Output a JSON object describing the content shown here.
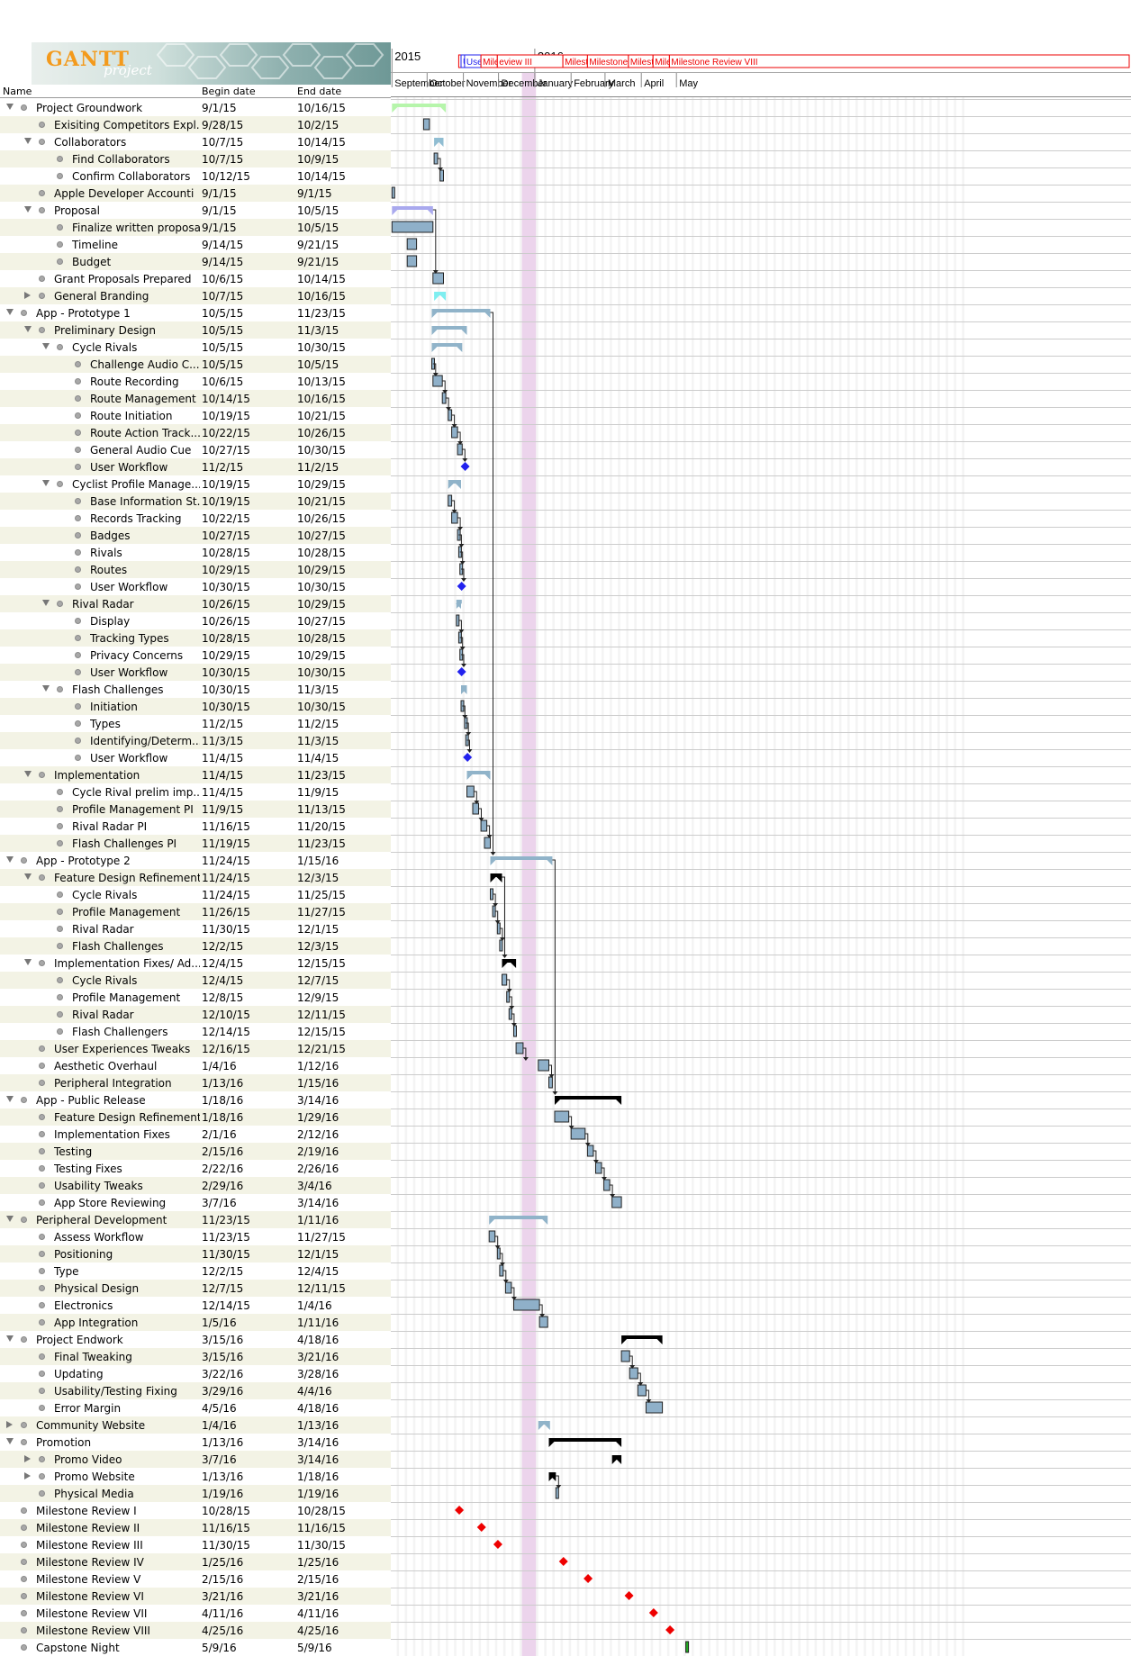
{
  "app": {
    "logo_text": "GANTT",
    "logo_subtext": "project"
  },
  "table": {
    "headers": {
      "name": "Name",
      "begin": "Begin date",
      "end": "End date"
    }
  },
  "timeline": {
    "years": [
      "2015",
      "2016"
    ],
    "months": [
      "September",
      "October",
      "November",
      "December",
      "January",
      "February",
      "March",
      "April",
      "May"
    ],
    "milestone_header_labels": [
      "H",
      "U",
      "User Wo",
      "Milestone Review II",
      "eview III",
      "Milestone Re",
      "Milestone Review V",
      "Milestone Re",
      "Milestor",
      "Milestone Review VIII"
    ]
  },
  "colors": {
    "task_bar": "#8fb0c9",
    "milestone_red": "#ee0000",
    "milestone_blue": "#2222ee",
    "holiday_band": "#ecd4ec",
    "weekend": "#f4f4f4"
  },
  "tasks": [
    {
      "name": "Project Groundwork",
      "begin": "9/1/15",
      "end": "10/16/15",
      "level": 0,
      "expand": "open",
      "kind": "summary",
      "color": "#b6f5ab"
    },
    {
      "name": "Exisiting Competitors Expl...",
      "begin": "9/28/15",
      "end": "10/2/15",
      "level": 1,
      "expand": "",
      "kind": "task"
    },
    {
      "name": "Collaborators",
      "begin": "10/7/15",
      "end": "10/14/15",
      "level": 1,
      "expand": "open",
      "kind": "summary",
      "color": "#90bdd2"
    },
    {
      "name": "Find Collaborators",
      "begin": "10/7/15",
      "end": "10/9/15",
      "level": 2,
      "expand": "",
      "kind": "task"
    },
    {
      "name": "Confirm Collaborators",
      "begin": "10/12/15",
      "end": "10/14/15",
      "level": 2,
      "expand": "",
      "kind": "task"
    },
    {
      "name": "Apple Developer Accounti",
      "begin": "9/1/15",
      "end": "9/1/15",
      "level": 1,
      "expand": "",
      "kind": "task"
    },
    {
      "name": "Proposal",
      "begin": "9/1/15",
      "end": "10/5/15",
      "level": 1,
      "expand": "open",
      "kind": "summary",
      "color": "#a9a9ee"
    },
    {
      "name": "Finalize written proposal",
      "begin": "9/1/15",
      "end": "10/5/15",
      "level": 2,
      "expand": "",
      "kind": "task"
    },
    {
      "name": "Timeline",
      "begin": "9/14/15",
      "end": "9/21/15",
      "level": 2,
      "expand": "",
      "kind": "task"
    },
    {
      "name": "Budget",
      "begin": "9/14/15",
      "end": "9/21/15",
      "level": 2,
      "expand": "",
      "kind": "task"
    },
    {
      "name": "Grant Proposals Prepared",
      "begin": "10/6/15",
      "end": "10/14/15",
      "level": 1,
      "expand": "",
      "kind": "task"
    },
    {
      "name": "General Branding",
      "begin": "10/7/15",
      "end": "10/16/15",
      "level": 1,
      "expand": "closed",
      "kind": "summary",
      "color": "#7eeef0"
    },
    {
      "name": "App - Prototype 1",
      "begin": "10/5/15",
      "end": "11/23/15",
      "level": 0,
      "expand": "open",
      "kind": "summary",
      "color": "#90b3c9"
    },
    {
      "name": "Preliminary Design",
      "begin": "10/5/15",
      "end": "11/3/15",
      "level": 1,
      "expand": "open",
      "kind": "summary",
      "color": "#90b3c9"
    },
    {
      "name": "Cycle Rivals",
      "begin": "10/5/15",
      "end": "10/30/15",
      "level": 2,
      "expand": "open",
      "kind": "summary",
      "color": "#90b3c9"
    },
    {
      "name": "Challenge Audio C...",
      "begin": "10/5/15",
      "end": "10/5/15",
      "level": 3,
      "expand": "",
      "kind": "task"
    },
    {
      "name": "Route Recording",
      "begin": "10/6/15",
      "end": "10/13/15",
      "level": 3,
      "expand": "",
      "kind": "task"
    },
    {
      "name": "Route Management",
      "begin": "10/14/15",
      "end": "10/16/15",
      "level": 3,
      "expand": "",
      "kind": "task"
    },
    {
      "name": "Route Initiation",
      "begin": "10/19/15",
      "end": "10/21/15",
      "level": 3,
      "expand": "",
      "kind": "task"
    },
    {
      "name": "Route Action Track...",
      "begin": "10/22/15",
      "end": "10/26/15",
      "level": 3,
      "expand": "",
      "kind": "task"
    },
    {
      "name": "General Audio Cue",
      "begin": "10/27/15",
      "end": "10/30/15",
      "level": 3,
      "expand": "",
      "kind": "task"
    },
    {
      "name": "User Workflow",
      "begin": "11/2/15",
      "end": "11/2/15",
      "level": 3,
      "expand": "",
      "kind": "milestone",
      "color": "#2222ee"
    },
    {
      "name": "Cyclist Profile Manage...",
      "begin": "10/19/15",
      "end": "10/29/15",
      "level": 2,
      "expand": "open",
      "kind": "summary",
      "color": "#90b3c9"
    },
    {
      "name": "Base Information St...",
      "begin": "10/19/15",
      "end": "10/21/15",
      "level": 3,
      "expand": "",
      "kind": "task"
    },
    {
      "name": "Records Tracking",
      "begin": "10/22/15",
      "end": "10/26/15",
      "level": 3,
      "expand": "",
      "kind": "task"
    },
    {
      "name": "Badges",
      "begin": "10/27/15",
      "end": "10/27/15",
      "level": 3,
      "expand": "",
      "kind": "task"
    },
    {
      "name": "Rivals",
      "begin": "10/28/15",
      "end": "10/28/15",
      "level": 3,
      "expand": "",
      "kind": "task"
    },
    {
      "name": "Routes",
      "begin": "10/29/15",
      "end": "10/29/15",
      "level": 3,
      "expand": "",
      "kind": "task"
    },
    {
      "name": "User Workflow",
      "begin": "10/30/15",
      "end": "10/30/15",
      "level": 3,
      "expand": "",
      "kind": "milestone",
      "color": "#2222ee"
    },
    {
      "name": "Rival Radar",
      "begin": "10/26/15",
      "end": "10/29/15",
      "level": 2,
      "expand": "open",
      "kind": "summary",
      "color": "#90b3c9"
    },
    {
      "name": "Display",
      "begin": "10/26/15",
      "end": "10/27/15",
      "level": 3,
      "expand": "",
      "kind": "task"
    },
    {
      "name": "Tracking Types",
      "begin": "10/28/15",
      "end": "10/28/15",
      "level": 3,
      "expand": "",
      "kind": "task"
    },
    {
      "name": "Privacy Concerns",
      "begin": "10/29/15",
      "end": "10/29/15",
      "level": 3,
      "expand": "",
      "kind": "task"
    },
    {
      "name": "User Workflow",
      "begin": "10/30/15",
      "end": "10/30/15",
      "level": 3,
      "expand": "",
      "kind": "milestone",
      "color": "#2222ee"
    },
    {
      "name": "Flash Challenges",
      "begin": "10/30/15",
      "end": "11/3/15",
      "level": 2,
      "expand": "open",
      "kind": "summary",
      "color": "#90b3c9"
    },
    {
      "name": "Initiation",
      "begin": "10/30/15",
      "end": "10/30/15",
      "level": 3,
      "expand": "",
      "kind": "task"
    },
    {
      "name": "Types",
      "begin": "11/2/15",
      "end": "11/2/15",
      "level": 3,
      "expand": "",
      "kind": "task"
    },
    {
      "name": "Identifying/Determ...",
      "begin": "11/3/15",
      "end": "11/3/15",
      "level": 3,
      "expand": "",
      "kind": "task"
    },
    {
      "name": "User Workflow",
      "begin": "11/4/15",
      "end": "11/4/15",
      "level": 3,
      "expand": "",
      "kind": "milestone",
      "color": "#2222ee"
    },
    {
      "name": "Implementation",
      "begin": "11/4/15",
      "end": "11/23/15",
      "level": 1,
      "expand": "open",
      "kind": "summary",
      "color": "#90b3c9"
    },
    {
      "name": "Cycle Rival prelim imp...",
      "begin": "11/4/15",
      "end": "11/9/15",
      "level": 2,
      "expand": "",
      "kind": "task"
    },
    {
      "name": "Profile Management PI",
      "begin": "11/9/15",
      "end": "11/13/15",
      "level": 2,
      "expand": "",
      "kind": "task"
    },
    {
      "name": "Rival Radar PI",
      "begin": "11/16/15",
      "end": "11/20/15",
      "level": 2,
      "expand": "",
      "kind": "task"
    },
    {
      "name": "Flash Challenges PI",
      "begin": "11/19/15",
      "end": "11/23/15",
      "level": 2,
      "expand": "",
      "kind": "task"
    },
    {
      "name": "App - Prototype 2",
      "begin": "11/24/15",
      "end": "1/15/16",
      "level": 0,
      "expand": "open",
      "kind": "summary",
      "color": "#90b3c9"
    },
    {
      "name": "Feature Design Refinements",
      "begin": "11/24/15",
      "end": "12/3/15",
      "level": 1,
      "expand": "open",
      "kind": "summary",
      "color": "#000000"
    },
    {
      "name": "Cycle Rivals",
      "begin": "11/24/15",
      "end": "11/25/15",
      "level": 2,
      "expand": "",
      "kind": "task"
    },
    {
      "name": "Profile Management",
      "begin": "11/26/15",
      "end": "11/27/15",
      "level": 2,
      "expand": "",
      "kind": "task"
    },
    {
      "name": "Rival Radar",
      "begin": "11/30/15",
      "end": "12/1/15",
      "level": 2,
      "expand": "",
      "kind": "task"
    },
    {
      "name": "Flash Challenges",
      "begin": "12/2/15",
      "end": "12/3/15",
      "level": 2,
      "expand": "",
      "kind": "task"
    },
    {
      "name": "Implementation Fixes/ Ad...",
      "begin": "12/4/15",
      "end": "12/15/15",
      "level": 1,
      "expand": "open",
      "kind": "summary",
      "color": "#000000"
    },
    {
      "name": "Cycle Rivals",
      "begin": "12/4/15",
      "end": "12/7/15",
      "level": 2,
      "expand": "",
      "kind": "task"
    },
    {
      "name": "Profile Management",
      "begin": "12/8/15",
      "end": "12/9/15",
      "level": 2,
      "expand": "",
      "kind": "task"
    },
    {
      "name": "Rival Radar",
      "begin": "12/10/15",
      "end": "12/11/15",
      "level": 2,
      "expand": "",
      "kind": "task"
    },
    {
      "name": "Flash Challengers",
      "begin": "12/14/15",
      "end": "12/15/15",
      "level": 2,
      "expand": "",
      "kind": "task"
    },
    {
      "name": "User Experiences Tweaks",
      "begin": "12/16/15",
      "end": "12/21/15",
      "level": 1,
      "expand": "",
      "kind": "task"
    },
    {
      "name": "Aesthetic Overhaul",
      "begin": "1/4/16",
      "end": "1/12/16",
      "level": 1,
      "expand": "",
      "kind": "task"
    },
    {
      "name": "Peripheral Integration",
      "begin": "1/13/16",
      "end": "1/15/16",
      "level": 1,
      "expand": "",
      "kind": "task"
    },
    {
      "name": "App - Public Release",
      "begin": "1/18/16",
      "end": "3/14/16",
      "level": 0,
      "expand": "open",
      "kind": "summary",
      "color": "#000000"
    },
    {
      "name": "Feature Design Refinements",
      "begin": "1/18/16",
      "end": "1/29/16",
      "level": 1,
      "expand": "",
      "kind": "task"
    },
    {
      "name": "Implementation Fixes",
      "begin": "2/1/16",
      "end": "2/12/16",
      "level": 1,
      "expand": "",
      "kind": "task"
    },
    {
      "name": "Testing",
      "begin": "2/15/16",
      "end": "2/19/16",
      "level": 1,
      "expand": "",
      "kind": "task"
    },
    {
      "name": "Testing Fixes",
      "begin": "2/22/16",
      "end": "2/26/16",
      "level": 1,
      "expand": "",
      "kind": "task"
    },
    {
      "name": "Usability Tweaks",
      "begin": "2/29/16",
      "end": "3/4/16",
      "level": 1,
      "expand": "",
      "kind": "task"
    },
    {
      "name": "App Store Reviewing",
      "begin": "3/7/16",
      "end": "3/14/16",
      "level": 1,
      "expand": "",
      "kind": "task"
    },
    {
      "name": "Peripheral Development",
      "begin": "11/23/15",
      "end": "1/11/16",
      "level": 0,
      "expand": "open",
      "kind": "summary",
      "color": "#90b3c9"
    },
    {
      "name": "Assess Workflow",
      "begin": "11/23/15",
      "end": "11/27/15",
      "level": 1,
      "expand": "",
      "kind": "task"
    },
    {
      "name": "Positioning",
      "begin": "11/30/15",
      "end": "12/1/15",
      "level": 1,
      "expand": "",
      "kind": "task"
    },
    {
      "name": "Type",
      "begin": "12/2/15",
      "end": "12/4/15",
      "level": 1,
      "expand": "",
      "kind": "task"
    },
    {
      "name": "Physical Design",
      "begin": "12/7/15",
      "end": "12/11/15",
      "level": 1,
      "expand": "",
      "kind": "task"
    },
    {
      "name": "Electronics",
      "begin": "12/14/15",
      "end": "1/4/16",
      "level": 1,
      "expand": "",
      "kind": "task"
    },
    {
      "name": "App Integration",
      "begin": "1/5/16",
      "end": "1/11/16",
      "level": 1,
      "expand": "",
      "kind": "task"
    },
    {
      "name": "Project Endwork",
      "begin": "3/15/16",
      "end": "4/18/16",
      "level": 0,
      "expand": "open",
      "kind": "summary",
      "color": "#000000"
    },
    {
      "name": "Final Tweaking",
      "begin": "3/15/16",
      "end": "3/21/16",
      "level": 1,
      "expand": "",
      "kind": "task"
    },
    {
      "name": "Updating",
      "begin": "3/22/16",
      "end": "3/28/16",
      "level": 1,
      "expand": "",
      "kind": "task"
    },
    {
      "name": "Usability/Testing Fixing",
      "begin": "3/29/16",
      "end": "4/4/16",
      "level": 1,
      "expand": "",
      "kind": "task"
    },
    {
      "name": "Error Margin",
      "begin": "4/5/16",
      "end": "4/18/16",
      "level": 1,
      "expand": "",
      "kind": "task"
    },
    {
      "name": "Community Website",
      "begin": "1/4/16",
      "end": "1/13/16",
      "level": 0,
      "expand": "closed",
      "kind": "summary",
      "color": "#90b3c9"
    },
    {
      "name": "Promotion",
      "begin": "1/13/16",
      "end": "3/14/16",
      "level": 0,
      "expand": "open",
      "kind": "summary",
      "color": "#000000"
    },
    {
      "name": "Promo Video",
      "begin": "3/7/16",
      "end": "3/14/16",
      "level": 1,
      "expand": "closed",
      "kind": "summary",
      "color": "#000000"
    },
    {
      "name": "Promo Website",
      "begin": "1/13/16",
      "end": "1/18/16",
      "level": 1,
      "expand": "closed",
      "kind": "summary",
      "color": "#000000"
    },
    {
      "name": "Physical Media",
      "begin": "1/19/16",
      "end": "1/19/16",
      "level": 1,
      "expand": "",
      "kind": "task"
    },
    {
      "name": "Milestone Review I",
      "begin": "10/28/15",
      "end": "10/28/15",
      "level": 0,
      "expand": "",
      "kind": "milestone",
      "color": "#ee0000"
    },
    {
      "name": "Milestone Review II",
      "begin": "11/16/15",
      "end": "11/16/15",
      "level": 0,
      "expand": "",
      "kind": "milestone",
      "color": "#ee0000"
    },
    {
      "name": "Milestone Review III",
      "begin": "11/30/15",
      "end": "11/30/15",
      "level": 0,
      "expand": "",
      "kind": "milestone",
      "color": "#ee0000"
    },
    {
      "name": "Milestone Review IV",
      "begin": "1/25/16",
      "end": "1/25/16",
      "level": 0,
      "expand": "",
      "kind": "milestone",
      "color": "#ee0000"
    },
    {
      "name": "Milestone Review V",
      "begin": "2/15/16",
      "end": "2/15/16",
      "level": 0,
      "expand": "",
      "kind": "milestone",
      "color": "#ee0000"
    },
    {
      "name": "Milestone Review VI",
      "begin": "3/21/16",
      "end": "3/21/16",
      "level": 0,
      "expand": "",
      "kind": "milestone",
      "color": "#ee0000"
    },
    {
      "name": "Milestone Review VII",
      "begin": "4/11/16",
      "end": "4/11/16",
      "level": 0,
      "expand": "",
      "kind": "milestone",
      "color": "#ee0000"
    },
    {
      "name": "Milestone Review VIII",
      "begin": "4/25/16",
      "end": "4/25/16",
      "level": 0,
      "expand": "",
      "kind": "milestone",
      "color": "#ee0000"
    },
    {
      "name": "Capstone Night",
      "begin": "5/9/16",
      "end": "5/9/16",
      "level": 0,
      "expand": "",
      "kind": "task",
      "color": "#22aa22"
    }
  ]
}
